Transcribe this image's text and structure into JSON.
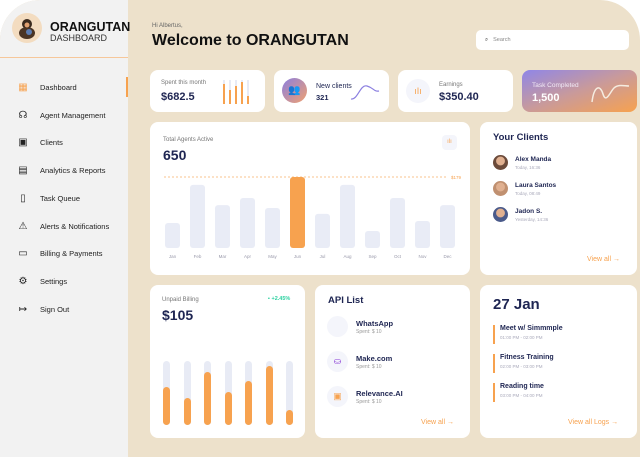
{
  "brand": {
    "name": "ORANGUTAN",
    "sub": "DASHBOARD"
  },
  "nav": [
    {
      "label": "Dashboard",
      "icon": "grid-icon",
      "glyph": "▦"
    },
    {
      "label": "Agent Management",
      "icon": "headset-icon",
      "glyph": "☊"
    },
    {
      "label": "Clients",
      "icon": "id-card-icon",
      "glyph": "▣"
    },
    {
      "label": "Analytics &  Reports",
      "icon": "analytics-icon",
      "glyph": "▤"
    },
    {
      "label": "Task Queue",
      "icon": "clipboard-icon",
      "glyph": "▯"
    },
    {
      "label": "Alerts & Notifications",
      "icon": "warning-icon",
      "glyph": "⚠"
    },
    {
      "label": "Billing & Payments",
      "icon": "billing-icon",
      "glyph": "▭"
    },
    {
      "label": "Settings",
      "icon": "gear-icon",
      "glyph": "⚙"
    },
    {
      "label": "Sign Out",
      "icon": "sign-out-icon",
      "glyph": "↦"
    }
  ],
  "header": {
    "greeting": "Hi Albertus,",
    "title": "Welcome to ORANGUTAN",
    "search_placeholder": "Search"
  },
  "stats": {
    "spent": {
      "label": "Spent this month",
      "value": "$682.5"
    },
    "clients": {
      "label": "New clients",
      "value": "321"
    },
    "earnings": {
      "label": "Earnings",
      "value": "$350.40"
    },
    "tasks": {
      "label": "Task Completed",
      "value": "1,500"
    }
  },
  "chart_data": {
    "type": "bar",
    "title": "Total Agents Active",
    "total": "650",
    "categories": [
      "Jan",
      "Feb",
      "Mar",
      "Apr",
      "May",
      "Jun",
      "Jul",
      "Aug",
      "Sep",
      "Oct",
      "Nov",
      "Dec"
    ],
    "values": [
      63,
      159,
      108,
      126,
      101,
      179,
      86,
      159,
      43,
      126,
      68,
      108
    ],
    "highlight": "Jun",
    "reference_label": "$179",
    "reference_value": 179,
    "ylim": [
      0,
      179
    ]
  },
  "your_clients": {
    "title": "Your Clients",
    "items": [
      {
        "name": "Alex Manda",
        "time": "Today, 16:36"
      },
      {
        "name": "Laura Santos",
        "time": "Today, 08:49"
      },
      {
        "name": "Jadon S.",
        "time": "Yesterday, 14:36"
      }
    ],
    "view_all": "View all"
  },
  "billing": {
    "label": "Unpaid Billing",
    "value": "$105",
    "change": "+2.45%",
    "bars": [
      0.6,
      0.42,
      0.83,
      0.52,
      0.69,
      0.92,
      0.23
    ]
  },
  "api": {
    "title": "API List",
    "items": [
      {
        "name": "WhatsApp",
        "spent": "Spent: $ 10"
      },
      {
        "name": "Make.com",
        "spent": "Spent: $ 10"
      },
      {
        "name": "Relevance.AI",
        "spent": "Spent: $ 10"
      }
    ],
    "view_all": "View all"
  },
  "schedule": {
    "date": "27 Jan",
    "events": [
      {
        "title": "Meet w/ Simmmple",
        "time": "01:00 PM - 02:00 PM"
      },
      {
        "title": "Fitness Training",
        "time": "02:00 PM - 03:00 PM"
      },
      {
        "title": "Reading time",
        "time": "03:00 PM - 04:00 PM"
      }
    ],
    "view_all": "View all Logs"
  },
  "colors": {
    "accent": "#f7a24f",
    "navy": "#1e2552",
    "bg": "#ede1cb"
  }
}
